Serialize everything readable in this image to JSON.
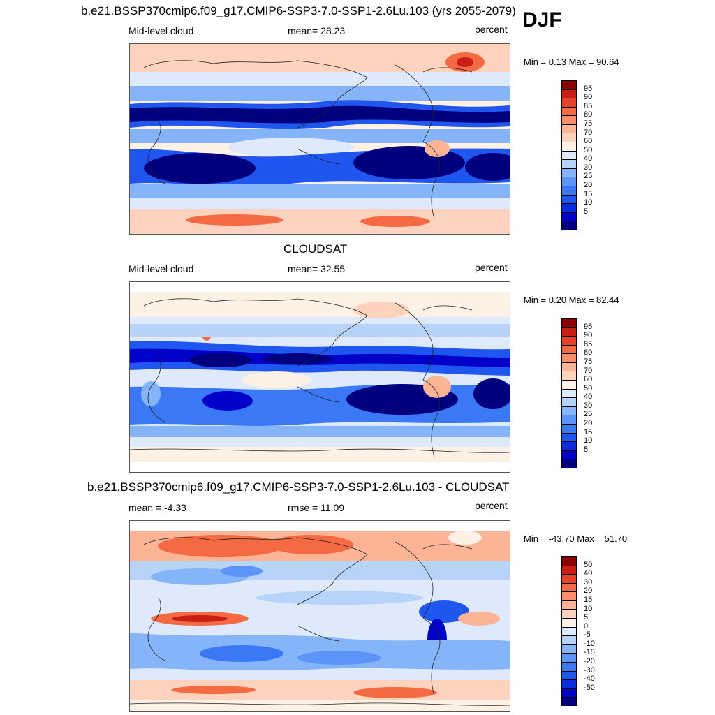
{
  "season": "DJF",
  "panels": [
    {
      "id": "model",
      "title": "b.e21.BSSP370cmip6.f09_g17.CMIP6-SSP3-7.0-SSP1-2.6Lu.103 (yrs 2055-2079)",
      "left_label": "Mid-level cloud",
      "center_label": "mean=  28.23",
      "right_label": "percent",
      "minmax": "Min =   0.13 Max =  90.64"
    },
    {
      "id": "obs",
      "title": "CLOUDSAT",
      "left_label": "Mid-level cloud",
      "center_label": "mean=  32.55",
      "right_label": "percent",
      "minmax": "Min =   0.20 Max =  82.44"
    },
    {
      "id": "diff",
      "title": "b.e21.BSSP370cmip6.f09_g17.CMIP6-SSP3-7.0-SSP1-2.6Lu.103 - CLOUDSAT",
      "left_label": "mean =  -4.33",
      "center_label": "rmse =  11.09",
      "right_label": "percent",
      "minmax": "Min = -43.70 Max =  51.70"
    }
  ],
  "chart_data": [
    {
      "type": "heatmap",
      "title": "b.e21.BSSP370cmip6.f09_g17.CMIP6-SSP3-7.0-SSP1-2.6Lu.103 (yrs 2055-2079)",
      "variable": "Mid-level cloud",
      "units": "percent",
      "mean": 28.23,
      "min": 0.13,
      "max": 90.64,
      "levels": [
        5,
        10,
        15,
        20,
        25,
        30,
        40,
        50,
        60,
        70,
        75,
        80,
        85,
        90,
        95
      ]
    },
    {
      "type": "heatmap",
      "title": "CLOUDSAT",
      "variable": "Mid-level cloud",
      "units": "percent",
      "mean": 32.55,
      "min": 0.2,
      "max": 82.44,
      "levels": [
        5,
        10,
        15,
        20,
        25,
        30,
        40,
        50,
        60,
        70,
        75,
        80,
        85,
        90,
        95
      ]
    },
    {
      "type": "heatmap",
      "title": "b.e21.BSSP370cmip6.f09_g17.CMIP6-SSP3-7.0-SSP1-2.6Lu.103 - CLOUDSAT",
      "units": "percent",
      "mean": -4.33,
      "rmse": 11.09,
      "min": -43.7,
      "max": 51.7,
      "levels": [
        -50,
        -40,
        -30,
        -20,
        -15,
        -10,
        -5,
        0,
        5,
        10,
        15,
        20,
        30,
        40,
        50
      ]
    }
  ],
  "colorbars": {
    "abs_colors": [
      "#00007f",
      "#0000c8",
      "#0a2cdb",
      "#1f56f0",
      "#3b78f5",
      "#5c95f7",
      "#86b4f8",
      "#b7d3fa",
      "#deeafc",
      "#fdf0e4",
      "#fdd3bd",
      "#fcb396",
      "#fb8f69",
      "#f46a43",
      "#e4422a",
      "#c81e14",
      "#8b0000"
    ],
    "abs_labels": [
      "95",
      "90",
      "85",
      "80",
      "75",
      "70",
      "60",
      "50",
      "40",
      "30",
      "25",
      "20",
      "15",
      "10",
      "5"
    ],
    "diff_colors": [
      "#00007f",
      "#0000c8",
      "#0a2cdb",
      "#1f56f0",
      "#3b78f5",
      "#5c95f7",
      "#86b4f8",
      "#b7d3fa",
      "#deeafc",
      "#fdf0e4",
      "#fdd3bd",
      "#fcb396",
      "#fb8f69",
      "#f46a43",
      "#e4422a",
      "#c81e14",
      "#8b0000"
    ],
    "diff_labels": [
      "50",
      "40",
      "30",
      "20",
      "15",
      "10",
      "5",
      "0",
      "-5",
      "-10",
      "-15",
      "-20",
      "-30",
      "-40",
      "-50"
    ]
  }
}
